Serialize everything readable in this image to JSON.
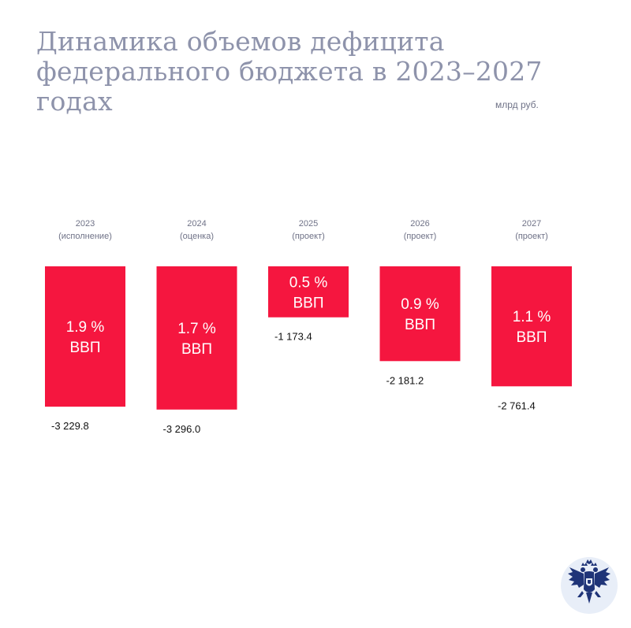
{
  "title": "Динамика объемов дефицита федерального бюджета в 2023–2027 годах",
  "unit": "млрд руб.",
  "colors": {
    "bar": "#f5163f",
    "title": "#8e93ab",
    "emblem_bg": "#e8eef8",
    "emblem": "#1f3478"
  },
  "emblem_icon": "double-headed-eagle-emblem",
  "chart_data": {
    "type": "bar",
    "orientation": "downward",
    "categories": [
      "2023",
      "2024",
      "2025",
      "2026",
      "2027"
    ],
    "category_notes": [
      "(исполнение)",
      "(оценка)",
      "(проект)",
      "(проект)",
      "(проект)"
    ],
    "values": [
      -3229.8,
      -3296.0,
      -1173.4,
      -2181.2,
      -2761.4
    ],
    "value_labels": [
      "-3 229.8",
      "-3 296.0",
      "-1 173.4",
      "-2 181.2",
      "-2 761.4"
    ],
    "bar_labels": [
      [
        "1.9 %",
        "ВВП"
      ],
      [
        "1.7 %",
        "ВВП"
      ],
      [
        "0.5 %",
        "ВВП"
      ],
      [
        "0.9 %",
        "ВВП"
      ],
      [
        "1.1 %",
        "ВВП"
      ]
    ],
    "gdp_share_percent": [
      1.9,
      1.7,
      0.5,
      0.9,
      1.1
    ],
    "ylim": [
      -3300,
      0
    ],
    "grid": false,
    "legend": "none"
  }
}
